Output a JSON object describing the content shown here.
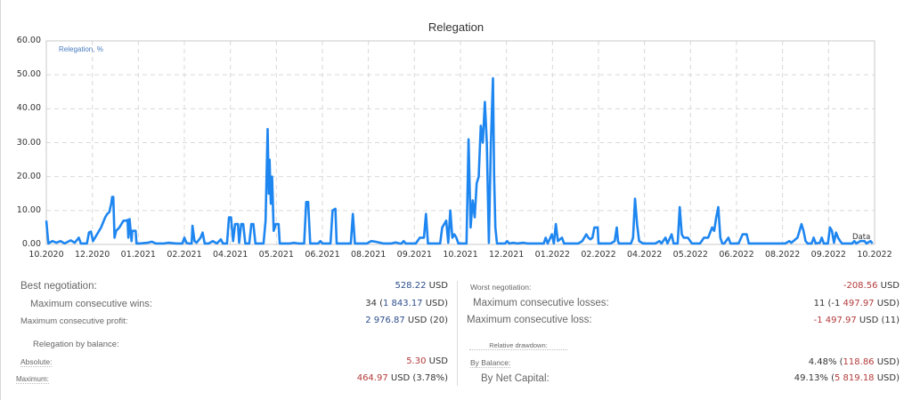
{
  "chart_data": {
    "type": "line",
    "title": "Relegation",
    "legend": "Relegation, %",
    "series_end_label": "Data",
    "xlabel": "",
    "ylabel": "",
    "ylim": [
      0,
      60
    ],
    "grid": true,
    "line_color": "#1e86f0",
    "y_ticks": [
      "60.00",
      "50.00",
      "40.00",
      "30.00",
      "20.00",
      "10.00",
      "0.00"
    ],
    "x_ticks": [
      "10.2020",
      "12.2020",
      "01.2021",
      "02.2021",
      "04.2021",
      "05.2021",
      "06.2021",
      "08.2021",
      "09.2021",
      "10.2021",
      "12.2021",
      "01.2022",
      "02.2022",
      "04.2022",
      "05.2022",
      "06.2022",
      "08.2022",
      "09.2022",
      "10.2022"
    ],
    "series": [
      {
        "name": "Relegation, %",
        "points": [
          [
            0,
            7
          ],
          [
            0.05,
            0.3
          ],
          [
            0.15,
            1
          ],
          [
            0.25,
            0.5
          ],
          [
            0.35,
            1
          ],
          [
            0.45,
            0.3
          ],
          [
            0.6,
            1.2
          ],
          [
            0.7,
            0.5
          ],
          [
            0.8,
            2
          ],
          [
            0.85,
            0.3
          ],
          [
            1.0,
            0.3
          ],
          [
            1.05,
            3.5
          ],
          [
            1.1,
            3.8
          ],
          [
            1.15,
            1
          ],
          [
            1.25,
            3
          ],
          [
            1.35,
            5
          ],
          [
            1.45,
            8
          ],
          [
            1.5,
            9
          ],
          [
            1.55,
            9.5
          ],
          [
            1.6,
            12
          ],
          [
            1.62,
            14
          ],
          [
            1.65,
            14
          ],
          [
            1.68,
            2
          ],
          [
            1.72,
            4
          ],
          [
            1.8,
            5
          ],
          [
            1.85,
            6
          ],
          [
            1.9,
            7
          ],
          [
            1.95,
            7
          ],
          [
            2.0,
            7.2
          ],
          [
            2.02,
            2
          ],
          [
            2.05,
            7.5
          ],
          [
            2.1,
            1
          ],
          [
            2.12,
            4
          ],
          [
            2.2,
            4
          ],
          [
            2.22,
            0.3
          ],
          [
            2.3,
            0.3
          ],
          [
            2.5,
            0.5
          ],
          [
            2.6,
            0.8
          ],
          [
            2.7,
            0.3
          ],
          [
            2.9,
            0.3
          ],
          [
            3.0,
            0.5
          ],
          [
            3.2,
            0.3
          ],
          [
            3.35,
            0.3
          ],
          [
            3.4,
            2
          ],
          [
            3.45,
            0.5
          ],
          [
            3.5,
            0.3
          ],
          [
            3.58,
            0.3
          ],
          [
            3.6,
            5.5
          ],
          [
            3.65,
            1
          ],
          [
            3.7,
            0.5
          ],
          [
            3.8,
            2
          ],
          [
            3.85,
            3.5
          ],
          [
            3.9,
            0.3
          ],
          [
            4.0,
            0.3
          ],
          [
            4.1,
            1
          ],
          [
            4.2,
            0.3
          ],
          [
            4.3,
            1.5
          ],
          [
            4.35,
            0.3
          ],
          [
            4.45,
            0.3
          ],
          [
            4.5,
            8
          ],
          [
            4.55,
            8
          ],
          [
            4.6,
            1
          ],
          [
            4.65,
            6
          ],
          [
            4.72,
            6
          ],
          [
            4.75,
            0.5
          ],
          [
            4.8,
            6
          ],
          [
            4.85,
            6
          ],
          [
            4.9,
            0.3
          ],
          [
            5.0,
            0.3
          ],
          [
            5.05,
            6
          ],
          [
            5.1,
            6
          ],
          [
            5.15,
            0.3
          ],
          [
            5.35,
            0.3
          ],
          [
            5.4,
            7
          ],
          [
            5.45,
            34
          ],
          [
            5.48,
            15
          ],
          [
            5.5,
            25
          ],
          [
            5.53,
            12
          ],
          [
            5.56,
            20
          ],
          [
            5.6,
            4
          ],
          [
            5.65,
            6
          ],
          [
            5.72,
            6
          ],
          [
            5.75,
            0.3
          ],
          [
            6.0,
            0.3
          ],
          [
            6.1,
            0.5
          ],
          [
            6.2,
            0.3
          ],
          [
            6.35,
            0.3
          ],
          [
            6.4,
            12.5
          ],
          [
            6.45,
            12.5
          ],
          [
            6.5,
            0.3
          ],
          [
            6.7,
            0.3
          ],
          [
            6.75,
            1
          ],
          [
            6.8,
            0.3
          ],
          [
            7.0,
            0.3
          ],
          [
            7.05,
            10
          ],
          [
            7.12,
            10.5
          ],
          [
            7.15,
            0.3
          ],
          [
            7.5,
            0.3
          ],
          [
            7.55,
            9
          ],
          [
            7.6,
            0.3
          ],
          [
            7.9,
            0.3
          ],
          [
            8.0,
            1
          ],
          [
            8.1,
            0.8
          ],
          [
            8.3,
            0.3
          ],
          [
            8.5,
            0.3
          ],
          [
            8.6,
            0.6
          ],
          [
            8.7,
            0.3
          ],
          [
            8.75,
            0.3
          ],
          [
            8.8,
            1
          ],
          [
            8.85,
            0.3
          ],
          [
            9.1,
            0.3
          ],
          [
            9.2,
            2
          ],
          [
            9.3,
            2
          ],
          [
            9.35,
            9
          ],
          [
            9.4,
            0.3
          ],
          [
            9.7,
            0.3
          ],
          [
            9.75,
            5
          ],
          [
            9.8,
            6
          ],
          [
            9.85,
            7
          ],
          [
            9.9,
            0.5
          ],
          [
            9.95,
            10
          ],
          [
            10.0,
            2
          ],
          [
            10.05,
            3
          ],
          [
            10.1,
            2
          ],
          [
            10.15,
            0.3
          ],
          [
            10.3,
            0.3
          ],
          [
            10.35,
            0.3
          ],
          [
            10.4,
            31
          ],
          [
            10.45,
            5
          ],
          [
            10.5,
            13
          ],
          [
            10.55,
            8
          ],
          [
            10.6,
            18
          ],
          [
            10.65,
            20
          ],
          [
            10.7,
            35
          ],
          [
            10.75,
            30
          ],
          [
            10.8,
            42
          ],
          [
            10.85,
            30
          ],
          [
            10.9,
            0.5
          ],
          [
            10.95,
            30
          ],
          [
            11.0,
            49
          ],
          [
            11.03,
            20
          ],
          [
            11.06,
            5
          ],
          [
            11.1,
            0.3
          ],
          [
            11.3,
            0.3
          ],
          [
            11.35,
            1
          ],
          [
            11.4,
            0.3
          ],
          [
            11.5,
            0.5
          ],
          [
            11.6,
            0.3
          ],
          [
            11.75,
            0.5
          ],
          [
            11.85,
            0.3
          ],
          [
            11.95,
            0.3
          ],
          [
            12.25,
            0.3
          ],
          [
            12.3,
            2
          ],
          [
            12.35,
            0.3
          ],
          [
            12.45,
            3
          ],
          [
            12.5,
            0.3
          ],
          [
            12.55,
            6
          ],
          [
            12.6,
            1
          ],
          [
            12.7,
            2
          ],
          [
            12.75,
            0.3
          ],
          [
            13.0,
            0.3
          ],
          [
            13.1,
            0.3
          ],
          [
            13.2,
            1
          ],
          [
            13.3,
            3
          ],
          [
            13.35,
            2
          ],
          [
            13.4,
            1.5
          ],
          [
            13.45,
            2
          ],
          [
            13.5,
            5
          ],
          [
            13.58,
            5
          ],
          [
            13.6,
            0.3
          ],
          [
            13.8,
            0.3
          ],
          [
            13.9,
            0.3
          ],
          [
            14.0,
            1
          ],
          [
            14.05,
            5
          ],
          [
            14.08,
            1
          ],
          [
            14.1,
            0.3
          ],
          [
            14.4,
            0.3
          ],
          [
            14.45,
            2
          ],
          [
            14.5,
            13.5
          ],
          [
            14.55,
            6
          ],
          [
            14.6,
            1
          ],
          [
            14.7,
            0.3
          ],
          [
            15.0,
            0.3
          ],
          [
            15.1,
            1
          ],
          [
            15.15,
            0.3
          ],
          [
            15.25,
            2
          ],
          [
            15.3,
            0.3
          ],
          [
            15.4,
            3
          ],
          [
            15.45,
            0.3
          ],
          [
            15.55,
            0.3
          ],
          [
            15.6,
            11
          ],
          [
            15.65,
            3
          ],
          [
            15.7,
            2
          ],
          [
            15.8,
            2
          ],
          [
            15.9,
            0.3
          ],
          [
            16.1,
            0.3
          ],
          [
            16.2,
            2
          ],
          [
            16.3,
            2
          ],
          [
            16.4,
            5
          ],
          [
            16.45,
            4
          ],
          [
            16.5,
            8
          ],
          [
            16.55,
            11
          ],
          [
            16.6,
            2
          ],
          [
            16.65,
            0.3
          ],
          [
            16.7,
            0.3
          ],
          [
            16.8,
            2
          ],
          [
            16.85,
            0.3
          ],
          [
            17.05,
            0.3
          ],
          [
            17.15,
            3
          ],
          [
            17.25,
            3
          ],
          [
            17.3,
            0.3
          ],
          [
            17.6,
            0.3
          ],
          [
            18.0,
            0.3
          ],
          [
            18.2,
            0.3
          ],
          [
            18.3,
            1
          ],
          [
            18.35,
            0.5
          ],
          [
            18.4,
            1
          ],
          [
            18.5,
            2
          ],
          [
            18.55,
            4
          ],
          [
            18.6,
            6
          ],
          [
            18.65,
            4
          ],
          [
            18.7,
            1
          ],
          [
            18.75,
            0.3
          ],
          [
            18.85,
            0.3
          ],
          [
            18.9,
            2
          ],
          [
            18.95,
            0.3
          ],
          [
            19.05,
            0.5
          ],
          [
            19.1,
            2
          ],
          [
            19.15,
            0.3
          ],
          [
            19.25,
            0.3
          ],
          [
            19.3,
            5
          ],
          [
            19.35,
            4
          ],
          [
            19.4,
            0.5
          ],
          [
            19.45,
            3.5
          ],
          [
            19.5,
            2
          ],
          [
            19.55,
            1
          ],
          [
            19.6,
            0.3
          ],
          [
            19.8,
            0.3
          ],
          [
            19.85,
            0.3
          ],
          [
            19.9,
            1
          ],
          [
            19.95,
            0.3
          ],
          [
            20.05,
            1
          ],
          [
            20.15,
            1
          ],
          [
            20.2,
            0.3
          ],
          [
            20.3,
            1
          ],
          [
            20.35,
            0.3
          ]
        ]
      }
    ]
  },
  "stats": {
    "left": {
      "best_negotiation": {
        "label": "Best negotiation:",
        "value": "528.22",
        "unit": " USD"
      },
      "max_consecutive_wins": {
        "label": "Maximum consecutive wins:",
        "prefix": "34 (",
        "value": "1 843.17",
        "unit": " USD)"
      },
      "max_consecutive_profit": {
        "label": "Maximum consecutive profit:",
        "value": "2 976.87",
        "unit": " USD (20)"
      },
      "relegation_by_balance": {
        "label": "Relegation by balance:"
      },
      "absolute": {
        "label": "Absolute:",
        "value": "5.30",
        "unit": " USD"
      },
      "maximum": {
        "label": "Maximum:",
        "value": "464.97",
        "unit": " USD (3.78%)"
      }
    },
    "right": {
      "worst_negotiation": {
        "label": "Worst negotiation:",
        "value": "-208.56",
        "unit": " USD"
      },
      "max_consecutive_losses": {
        "label": "Maximum consecutive losses:",
        "prefix": "11 (-1 ",
        "value": "497.97",
        "unit": " USD)"
      },
      "max_consecutive_loss": {
        "label": "Maximum consecutive loss:",
        "value": "-1 497.97",
        "unit": " USD (11)"
      },
      "relative_drawdown": {
        "label": "Relative drawdown:"
      },
      "by_balance": {
        "label": "By Balance:",
        "prefix": "4.48% (",
        "value": "118.86",
        "unit": " USD)"
      },
      "by_net_capital": {
        "label": "By Net Capital:",
        "prefix": "49.13% (",
        "value": "5 819.18",
        "unit": " USD)"
      }
    }
  }
}
